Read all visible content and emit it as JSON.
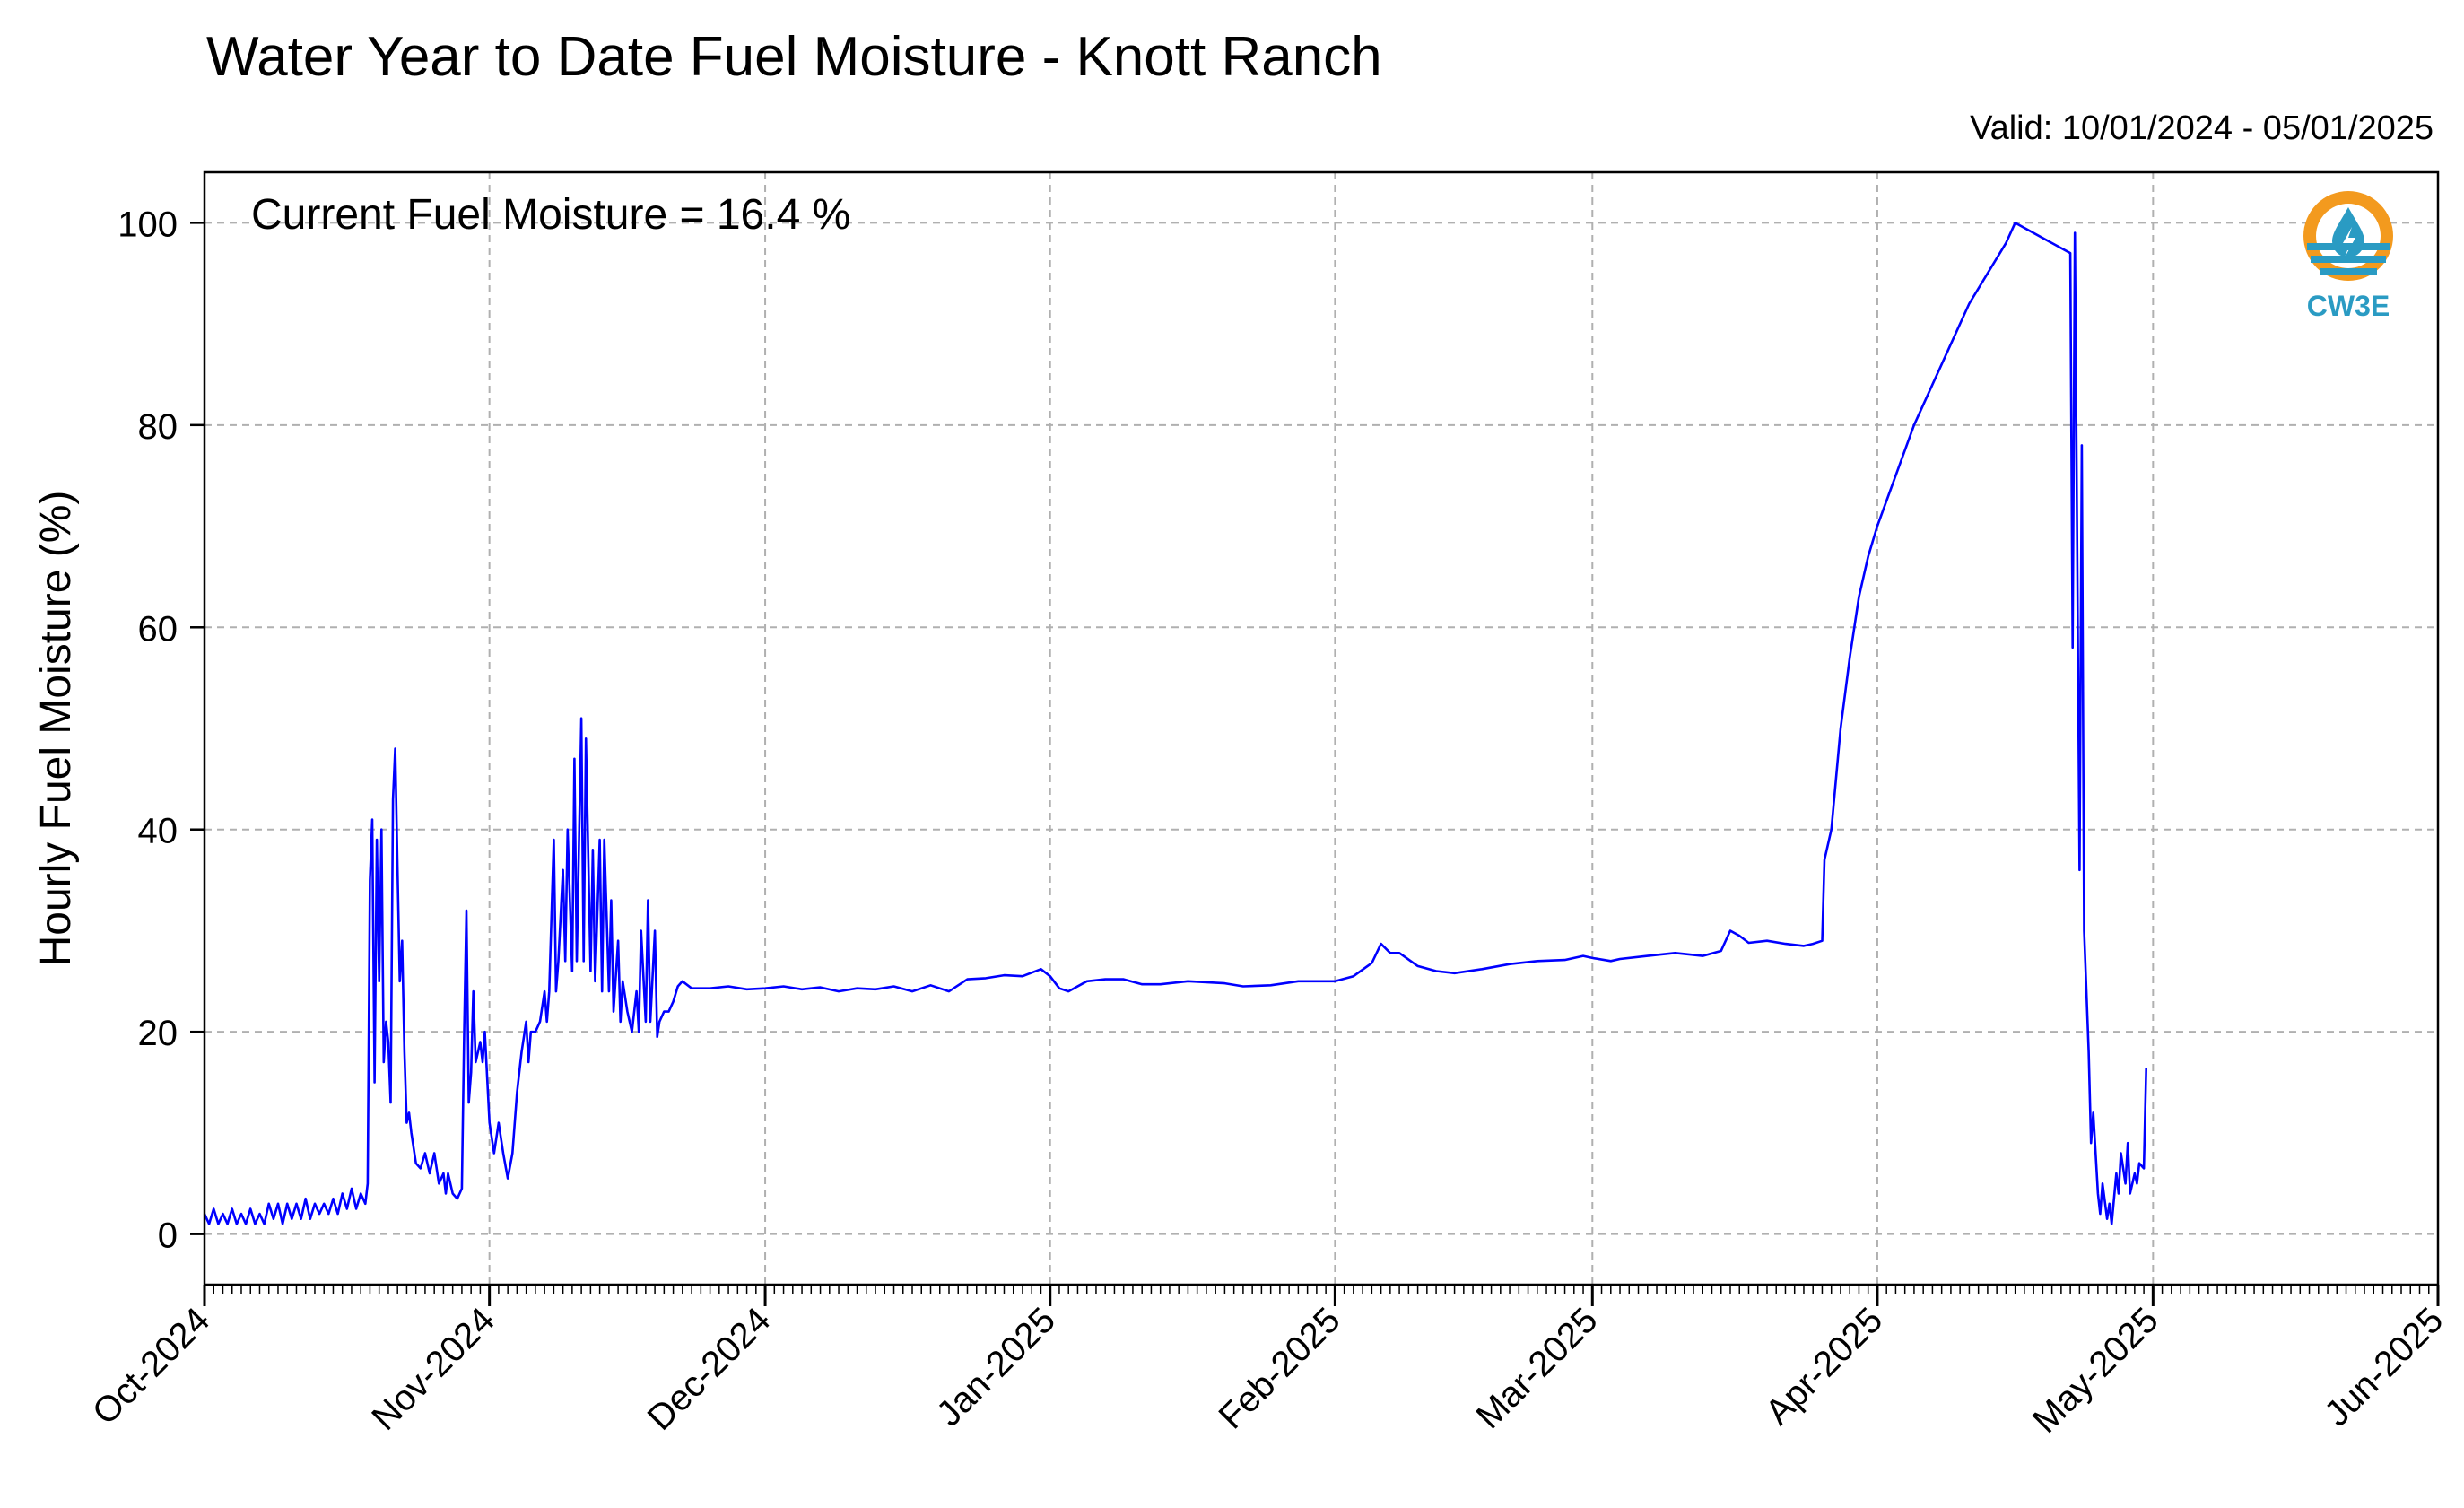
{
  "title": "Water Year to Date Fuel Moisture - Knott Ranch",
  "subtitle": "Valid: 10/01/2024 - 05/01/2025",
  "annotation": "Current Fuel Moisture = 16.4 %",
  "logo": {
    "text": "CW3E",
    "icon": "water-drop-logo-icon",
    "colors": {
      "orange": "#f39a1e",
      "blue": "#2a9bc3"
    }
  },
  "colors": {
    "line": "#0000ff",
    "grid": "#b0b0b0"
  },
  "chart_data": {
    "type": "line",
    "title": "Water Year to Date Fuel Moisture - Knott Ranch",
    "xlabel": "",
    "ylabel": "Hourly Fuel Moisture (%)",
    "xlim": [
      "2024-10-01",
      "2025-06-01"
    ],
    "ylim": [
      -5,
      105
    ],
    "grid": true,
    "y_ticks": [
      0,
      20,
      40,
      60,
      80,
      100
    ],
    "x_ticks": [
      {
        "date": "2024-10-01",
        "label": "Oct-2024"
      },
      {
        "date": "2024-11-01",
        "label": "Nov-2024"
      },
      {
        "date": "2024-12-01",
        "label": "Dec-2024"
      },
      {
        "date": "2025-01-01",
        "label": "Jan-2025"
      },
      {
        "date": "2025-02-01",
        "label": "Feb-2025"
      },
      {
        "date": "2025-03-01",
        "label": "Mar-2025"
      },
      {
        "date": "2025-04-01",
        "label": "Apr-2025"
      },
      {
        "date": "2025-05-01",
        "label": "May-2025"
      },
      {
        "date": "2025-06-01",
        "label": "Jun-2025"
      }
    ],
    "series": [
      {
        "color": "#0000ff",
        "points": [
          [
            "2024-10-01",
            2
          ],
          [
            "2024-10-01T12:00",
            1
          ],
          [
            "2024-10-02",
            2.5
          ],
          [
            "2024-10-02T12:00",
            1
          ],
          [
            "2024-10-03",
            2
          ],
          [
            "2024-10-03T12:00",
            1
          ],
          [
            "2024-10-04",
            2.5
          ],
          [
            "2024-10-04T12:00",
            1
          ],
          [
            "2024-10-05",
            2
          ],
          [
            "2024-10-05T12:00",
            1
          ],
          [
            "2024-10-06",
            2.5
          ],
          [
            "2024-10-06T12:00",
            1
          ],
          [
            "2024-10-07",
            2
          ],
          [
            "2024-10-07T12:00",
            1
          ],
          [
            "2024-10-08",
            3
          ],
          [
            "2024-10-08T12:00",
            1.5
          ],
          [
            "2024-10-09",
            3
          ],
          [
            "2024-10-09T12:00",
            1
          ],
          [
            "2024-10-10",
            3
          ],
          [
            "2024-10-10T12:00",
            1.5
          ],
          [
            "2024-10-11",
            3
          ],
          [
            "2024-10-11T12:00",
            1.5
          ],
          [
            "2024-10-12",
            3.5
          ],
          [
            "2024-10-12T12:00",
            1.5
          ],
          [
            "2024-10-13",
            3
          ],
          [
            "2024-10-13T12:00",
            2
          ],
          [
            "2024-10-14",
            3
          ],
          [
            "2024-10-14T12:00",
            2
          ],
          [
            "2024-10-15",
            3.5
          ],
          [
            "2024-10-15T12:00",
            2
          ],
          [
            "2024-10-16",
            4
          ],
          [
            "2024-10-16T12:00",
            2.5
          ],
          [
            "2024-10-17",
            4.5
          ],
          [
            "2024-10-17T12:00",
            2.5
          ],
          [
            "2024-10-18",
            4
          ],
          [
            "2024-10-18T12:00",
            3
          ],
          [
            "2024-10-18T18:00",
            5
          ],
          [
            "2024-10-19",
            35
          ],
          [
            "2024-10-19T06:00",
            41
          ],
          [
            "2024-10-19T12:00",
            15
          ],
          [
            "2024-10-19T18:00",
            39
          ],
          [
            "2024-10-20",
            25
          ],
          [
            "2024-10-20T06:00",
            40
          ],
          [
            "2024-10-20T12:00",
            17
          ],
          [
            "2024-10-20T18:00",
            21
          ],
          [
            "2024-10-21",
            19
          ],
          [
            "2024-10-21T06:00",
            13
          ],
          [
            "2024-10-21T12:00",
            43
          ],
          [
            "2024-10-21T18:00",
            48
          ],
          [
            "2024-10-22",
            36
          ],
          [
            "2024-10-22T06:00",
            25
          ],
          [
            "2024-10-22T12:00",
            29
          ],
          [
            "2024-10-22T18:00",
            18
          ],
          [
            "2024-10-23",
            11
          ],
          [
            "2024-10-23T06:00",
            12
          ],
          [
            "2024-10-23T12:00",
            10
          ],
          [
            "2024-10-24",
            7
          ],
          [
            "2024-10-24T12:00",
            6.5
          ],
          [
            "2024-10-25",
            8
          ],
          [
            "2024-10-25T12:00",
            6
          ],
          [
            "2024-10-26",
            8
          ],
          [
            "2024-10-26T12:00",
            5
          ],
          [
            "2024-10-27",
            6
          ],
          [
            "2024-10-27T06:00",
            4
          ],
          [
            "2024-10-27T12:00",
            6
          ],
          [
            "2024-10-28",
            4
          ],
          [
            "2024-10-28T12:00",
            3.5
          ],
          [
            "2024-10-29",
            4.5
          ],
          [
            "2024-10-29T06:00",
            20
          ],
          [
            "2024-10-29T12:00",
            32
          ],
          [
            "2024-10-29T18:00",
            13
          ],
          [
            "2024-10-30",
            16
          ],
          [
            "2024-10-30T06:00",
            24
          ],
          [
            "2024-10-30T12:00",
            17
          ],
          [
            "2024-10-31",
            19
          ],
          [
            "2024-10-31T06:00",
            17
          ],
          [
            "2024-10-31T12:00",
            20
          ],
          [
            "2024-11-01",
            11
          ],
          [
            "2024-11-01T12:00",
            8
          ],
          [
            "2024-11-02",
            11
          ],
          [
            "2024-11-02T12:00",
            8
          ],
          [
            "2024-11-03",
            5.5
          ],
          [
            "2024-11-03T12:00",
            8
          ],
          [
            "2024-11-04",
            14
          ],
          [
            "2024-11-04T12:00",
            18
          ],
          [
            "2024-11-05",
            21
          ],
          [
            "2024-11-05T06:00",
            17
          ],
          [
            "2024-11-05T12:00",
            20
          ],
          [
            "2024-11-06",
            20
          ],
          [
            "2024-11-06T12:00",
            21
          ],
          [
            "2024-11-07",
            24
          ],
          [
            "2024-11-07T06:00",
            21
          ],
          [
            "2024-11-07T12:00",
            24
          ],
          [
            "2024-11-08",
            39
          ],
          [
            "2024-11-08T06:00",
            24
          ],
          [
            "2024-11-08T12:00",
            27
          ],
          [
            "2024-11-09",
            36
          ],
          [
            "2024-11-09T06:00",
            27
          ],
          [
            "2024-11-09T12:00",
            40
          ],
          [
            "2024-11-10",
            26
          ],
          [
            "2024-11-10T06:00",
            47
          ],
          [
            "2024-11-10T12:00",
            27
          ],
          [
            "2024-11-11",
            51
          ],
          [
            "2024-11-11T06:00",
            27
          ],
          [
            "2024-11-11T12:00",
            49
          ],
          [
            "2024-11-12",
            26
          ],
          [
            "2024-11-12T06:00",
            38
          ],
          [
            "2024-11-12T12:00",
            25
          ],
          [
            "2024-11-13",
            39
          ],
          [
            "2024-11-13T06:00",
            24
          ],
          [
            "2024-11-13T12:00",
            39
          ],
          [
            "2024-11-14",
            24
          ],
          [
            "2024-11-14T06:00",
            33
          ],
          [
            "2024-11-14T12:00",
            22
          ],
          [
            "2024-11-15",
            29
          ],
          [
            "2024-11-15T06:00",
            21
          ],
          [
            "2024-11-15T12:00",
            25
          ],
          [
            "2024-11-16",
            22
          ],
          [
            "2024-11-16T12:00",
            20
          ],
          [
            "2024-11-17",
            24
          ],
          [
            "2024-11-17T06:00",
            20
          ],
          [
            "2024-11-17T12:00",
            30
          ],
          [
            "2024-11-18",
            21
          ],
          [
            "2024-11-18T06:00",
            33
          ],
          [
            "2024-11-18T12:00",
            21
          ],
          [
            "2024-11-19",
            30
          ],
          [
            "2024-11-19T06:00",
            19.5
          ],
          [
            "2024-11-19T12:00",
            21
          ],
          [
            "2024-11-20",
            22
          ],
          [
            "2024-11-20T12:00",
            22
          ],
          [
            "2024-11-21",
            23
          ],
          [
            "2024-11-21T12:00",
            24.5
          ],
          [
            "2024-11-22",
            25
          ],
          [
            "2024-11-23",
            24.3
          ],
          [
            "2024-11-25",
            24.3
          ],
          [
            "2024-11-27",
            24.5
          ],
          [
            "2024-11-29",
            24.2
          ],
          [
            "2024-12-01",
            24.3
          ],
          [
            "2024-12-03",
            24.5
          ],
          [
            "2024-12-05",
            24.2
          ],
          [
            "2024-12-07",
            24.4
          ],
          [
            "2024-12-09",
            24
          ],
          [
            "2024-12-11",
            24.3
          ],
          [
            "2024-12-13",
            24.2
          ],
          [
            "2024-12-15",
            24.5
          ],
          [
            "2024-12-17",
            24
          ],
          [
            "2024-12-19",
            24.6
          ],
          [
            "2024-12-21",
            24
          ],
          [
            "2024-12-23",
            25.2
          ],
          [
            "2024-12-25",
            25.3
          ],
          [
            "2024-12-27",
            25.6
          ],
          [
            "2024-12-29",
            25.5
          ],
          [
            "2024-12-31",
            26.2
          ],
          [
            "2025-01-01",
            25.5
          ],
          [
            "2025-01-02",
            24.3
          ],
          [
            "2025-01-03",
            24
          ],
          [
            "2025-01-05",
            25
          ],
          [
            "2025-01-07",
            25.2
          ],
          [
            "2025-01-09",
            25.2
          ],
          [
            "2025-01-11",
            24.7
          ],
          [
            "2025-01-13",
            24.7
          ],
          [
            "2025-01-16",
            25
          ],
          [
            "2025-01-20",
            24.8
          ],
          [
            "2025-01-22",
            24.5
          ],
          [
            "2025-01-25",
            24.6
          ],
          [
            "2025-01-28",
            25
          ],
          [
            "2025-02-01",
            25
          ],
          [
            "2025-02-03",
            25.5
          ],
          [
            "2025-02-05",
            26.8
          ],
          [
            "2025-02-06",
            28.7
          ],
          [
            "2025-02-07",
            27.8
          ],
          [
            "2025-02-08",
            27.8
          ],
          [
            "2025-02-10",
            26.5
          ],
          [
            "2025-02-12",
            26
          ],
          [
            "2025-02-14",
            25.8
          ],
          [
            "2025-02-17",
            26.2
          ],
          [
            "2025-02-20",
            26.7
          ],
          [
            "2025-02-23",
            27
          ],
          [
            "2025-02-26",
            27.1
          ],
          [
            "2025-02-28",
            27.5
          ],
          [
            "2025-03-01",
            27.3
          ],
          [
            "2025-03-03",
            27
          ],
          [
            "2025-03-04",
            27.2
          ],
          [
            "2025-03-07",
            27.5
          ],
          [
            "2025-03-10",
            27.8
          ],
          [
            "2025-03-13",
            27.5
          ],
          [
            "2025-03-15",
            28
          ],
          [
            "2025-03-16",
            30
          ],
          [
            "2025-03-17",
            29.5
          ],
          [
            "2025-03-18",
            28.8
          ],
          [
            "2025-03-20",
            29
          ],
          [
            "2025-03-22",
            28.7
          ],
          [
            "2025-03-24",
            28.5
          ],
          [
            "2025-03-25",
            28.7
          ],
          [
            "2025-03-26",
            29
          ],
          [
            "2025-03-26T06:00",
            37
          ],
          [
            "2025-03-27",
            40
          ],
          [
            "2025-03-28",
            50
          ],
          [
            "2025-03-29",
            57
          ],
          [
            "2025-03-30",
            63
          ],
          [
            "2025-03-31",
            67
          ],
          [
            "2025-04-01",
            70
          ],
          [
            "2025-04-03",
            75
          ],
          [
            "2025-04-05",
            80
          ],
          [
            "2025-04-07",
            84
          ],
          [
            "2025-04-09",
            88
          ],
          [
            "2025-04-11",
            92
          ],
          [
            "2025-04-13",
            95
          ],
          [
            "2025-04-15",
            98
          ],
          [
            "2025-04-16",
            100
          ],
          [
            "2025-04-22",
            97
          ],
          [
            "2025-04-22T06:00",
            58
          ],
          [
            "2025-04-22T12:00",
            99
          ],
          [
            "2025-04-23",
            36
          ],
          [
            "2025-04-23T06:00",
            78
          ],
          [
            "2025-04-23T12:00",
            30
          ],
          [
            "2025-04-24",
            18
          ],
          [
            "2025-04-24T06:00",
            9
          ],
          [
            "2025-04-24T12:00",
            12
          ],
          [
            "2025-04-25",
            4
          ],
          [
            "2025-04-25T06:00",
            2
          ],
          [
            "2025-04-25T12:00",
            5
          ],
          [
            "2025-04-26",
            1.5
          ],
          [
            "2025-04-26T06:00",
            3
          ],
          [
            "2025-04-26T12:00",
            1
          ],
          [
            "2025-04-27",
            6
          ],
          [
            "2025-04-27T06:00",
            4
          ],
          [
            "2025-04-27T12:00",
            8
          ],
          [
            "2025-04-28",
            5
          ],
          [
            "2025-04-28T06:00",
            9
          ],
          [
            "2025-04-28T12:00",
            4
          ],
          [
            "2025-04-29",
            6
          ],
          [
            "2025-04-29T06:00",
            5
          ],
          [
            "2025-04-29T12:00",
            7
          ],
          [
            "2025-04-30",
            6.5
          ],
          [
            "2025-04-30T06:00",
            16.4
          ]
        ]
      }
    ]
  }
}
